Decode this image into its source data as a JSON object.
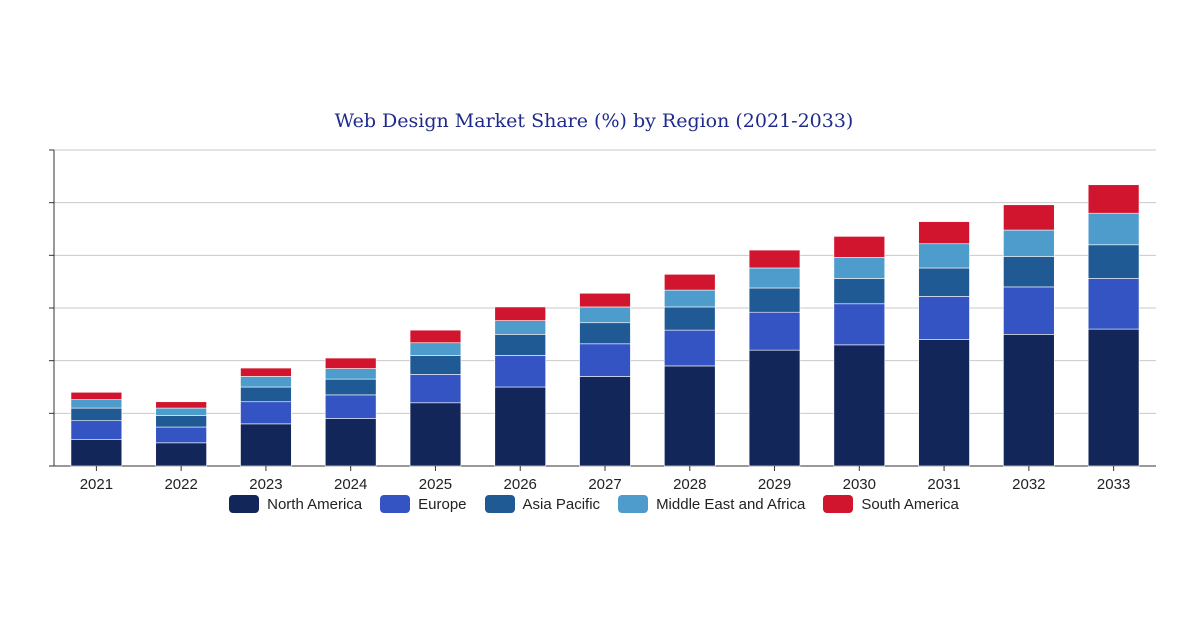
{
  "chart_data": {
    "type": "bar",
    "stacked": true,
    "title": "Web Design Market Share (%) by Region (2021-2033)",
    "xlabel": "",
    "ylabel": "",
    "ylim": [
      0,
      6
    ],
    "yticks": [
      0,
      1,
      2,
      3,
      4,
      5,
      6
    ],
    "ytick_labels_visible": false,
    "grid": true,
    "legend_position": "bottom",
    "categories": [
      "2021",
      "2022",
      "2023",
      "2024",
      "2025",
      "2026",
      "2027",
      "2028",
      "2029",
      "2030",
      "2031",
      "2032",
      "2033"
    ],
    "series": [
      {
        "name": "North America",
        "color": "#13265a",
        "values": [
          0.5,
          0.44,
          0.8,
          0.9,
          1.2,
          1.5,
          1.7,
          1.9,
          2.2,
          2.3,
          2.4,
          2.5,
          2.6
        ]
      },
      {
        "name": "Europe",
        "color": "#3454c4",
        "values": [
          0.36,
          0.3,
          0.42,
          0.45,
          0.54,
          0.6,
          0.62,
          0.68,
          0.72,
          0.78,
          0.82,
          0.9,
          0.96
        ]
      },
      {
        "name": "Asia Pacific",
        "color": "#205a95",
        "values": [
          0.24,
          0.22,
          0.28,
          0.3,
          0.36,
          0.4,
          0.4,
          0.44,
          0.46,
          0.48,
          0.54,
          0.58,
          0.64
        ]
      },
      {
        "name": "Middle East and Africa",
        "color": "#4e9ccc",
        "values": [
          0.16,
          0.14,
          0.2,
          0.2,
          0.24,
          0.26,
          0.3,
          0.32,
          0.38,
          0.4,
          0.46,
          0.5,
          0.6
        ]
      },
      {
        "name": "South America",
        "color": "#d2152e",
        "values": [
          0.14,
          0.12,
          0.16,
          0.2,
          0.24,
          0.26,
          0.26,
          0.3,
          0.34,
          0.4,
          0.42,
          0.48,
          0.54
        ]
      }
    ]
  }
}
